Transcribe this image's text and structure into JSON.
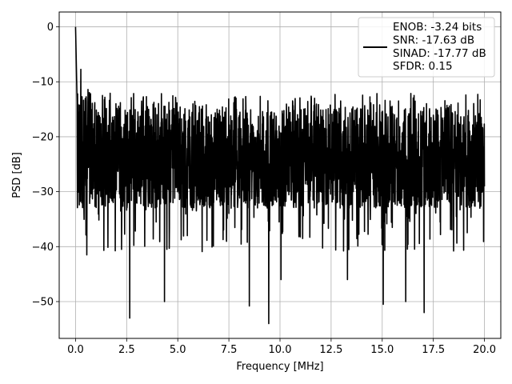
{
  "chart_data": {
    "type": "line",
    "title": "",
    "xlabel": "Frequency [MHz]",
    "ylabel": "PSD [dB]",
    "xlim": [
      -0.8,
      20.8
    ],
    "ylim": [
      -56.7,
      2.7
    ],
    "x_ticks": [
      0.0,
      2.5,
      5.0,
      7.5,
      10.0,
      12.5,
      15.0,
      17.5,
      20.0
    ],
    "x_tick_labels": [
      "0.0",
      "2.5",
      "5.0",
      "7.5",
      "10.0",
      "12.5",
      "15.0",
      "17.5",
      "20.0"
    ],
    "y_ticks": [
      0,
      -10,
      -20,
      -30,
      -40,
      -50
    ],
    "y_tick_labels": [
      "0",
      "−10",
      "−20",
      "−30",
      "−40",
      "−50"
    ],
    "grid": true,
    "legend_position": "upper right",
    "line_color": "#000000",
    "series": [
      {
        "name": "ENOB: -3.24 bits\nSNR: -17.63 dB\nSINAD: -17.77 dB\nSFDR: 0.15",
        "x_range": [
          0.0,
          20.0
        ],
        "notable_points": [
          {
            "x": 0.0,
            "y": 0.0
          },
          {
            "x": 0.08,
            "y": -14.5
          },
          {
            "x": 0.55,
            "y": -41.5
          },
          {
            "x": 2.25,
            "y": -40.5
          },
          {
            "x": 2.65,
            "y": -53.0
          },
          {
            "x": 4.35,
            "y": -50.0
          },
          {
            "x": 8.5,
            "y": -50.8
          },
          {
            "x": 9.45,
            "y": -54.0
          },
          {
            "x": 10.05,
            "y": -46.0
          },
          {
            "x": 13.3,
            "y": -46.0
          },
          {
            "x": 15.05,
            "y": -50.5
          },
          {
            "x": 16.15,
            "y": -50.0
          },
          {
            "x": 17.05,
            "y": -52.0
          }
        ],
        "typical_band": {
          "upper": -14.0,
          "lower": -33.0,
          "center": -22.0
        }
      }
    ]
  }
}
